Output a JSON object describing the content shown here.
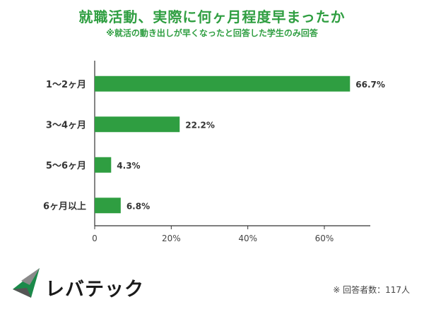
{
  "header": {
    "title": "就職活動、実際に何ヶ月程度早まったか",
    "subtitle": "※就活の動き出しが早くなったと回答した学生のみ回答"
  },
  "footer": {
    "brand": "レバテック",
    "respondents": "※ 回答者数：117人"
  },
  "colors": {
    "accent": "#2f9e41",
    "bar": "#2f9e41"
  },
  "chart_data": {
    "type": "bar",
    "orientation": "horizontal",
    "categories": [
      "1～2ヶ月",
      "3～4ヶ月",
      "5～6ヶ月",
      "6ヶ月以上"
    ],
    "values": [
      66.7,
      22.2,
      4.3,
      6.8
    ],
    "value_labels": [
      "66.7%",
      "22.2%",
      "4.3%",
      "6.8%"
    ],
    "xlim": [
      0,
      72
    ],
    "xticks": [
      0,
      20,
      40,
      60
    ],
    "xtick_labels": [
      "0",
      "20%",
      "40%",
      "60%"
    ],
    "grid": false,
    "legend": "none"
  }
}
